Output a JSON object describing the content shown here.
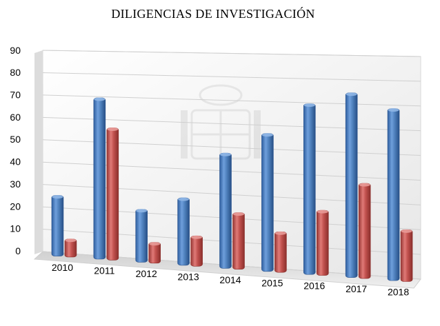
{
  "chart_data": {
    "type": "bar",
    "title": "DILIGENCIAS DE INVESTIGACIÓN",
    "xlabel": "",
    "ylabel": "",
    "ylim": [
      0,
      90
    ],
    "yticks": [
      0,
      10,
      20,
      30,
      40,
      50,
      60,
      70,
      80,
      90
    ],
    "grid": true,
    "legend": "none",
    "categories": [
      "2010",
      "2011",
      "2012",
      "2013",
      "2014",
      "2015",
      "2016",
      "2017",
      "2018"
    ],
    "series": [
      {
        "values": [
          27,
          71,
          23,
          29,
          49,
          58,
          71,
          76,
          70
        ],
        "color": "#4f81bd"
      },
      {
        "values": [
          8,
          58,
          9,
          13,
          24,
          17,
          27,
          39,
          21
        ],
        "color": "#c0504d"
      }
    ]
  }
}
